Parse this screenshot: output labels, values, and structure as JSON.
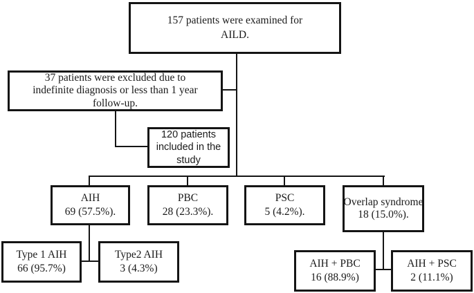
{
  "colors": {
    "line": "#141414",
    "background": "#ffffff"
  },
  "boxes": {
    "examined": {
      "lines": [
        "157 patients were examined for",
        "AILD."
      ]
    },
    "excluded": {
      "lines": [
        "37 patients were excluded due to",
        "indefinite diagnosis or less than 1 year",
        "follow-up."
      ]
    },
    "included": {
      "lines": [
        "120 patients",
        "included in the",
        "study"
      ]
    },
    "aih": {
      "lines": [
        "AIH",
        "69 (57.5%)."
      ]
    },
    "pbc": {
      "lines": [
        "PBC",
        "28 (23.3%)."
      ]
    },
    "psc": {
      "lines": [
        "PSC",
        "5 (4.2%)."
      ]
    },
    "overlap": {
      "lines": [
        "Overlap syndrome",
        "18 (15.0%)."
      ]
    },
    "type1_aih": {
      "lines": [
        "Type 1 AIH",
        "66 (95.7%)"
      ]
    },
    "type2_aih": {
      "lines": [
        "Type2 AIH",
        "3 (4.3%)"
      ]
    },
    "aih_pbc": {
      "lines": [
        "AIH + PBC",
        "16 (88.9%)"
      ]
    },
    "aih_psc": {
      "lines": [
        "AIH + PSC",
        "2 (11.1%)"
      ]
    }
  }
}
